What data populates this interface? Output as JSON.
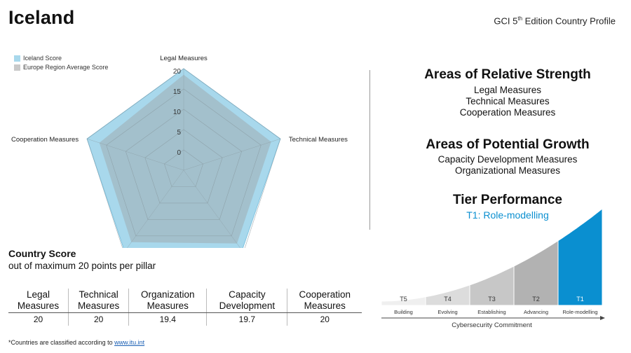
{
  "country": "Iceland",
  "edition": {
    "prefix": "GCI 5",
    "sup": "th",
    "suffix": " Edition Country Profile"
  },
  "colors": {
    "iceland": "#a8d8ec",
    "iceland_stroke": "#7fc3e0",
    "europe": "#9fadb2",
    "grid": "#8a9ba2",
    "tier_active": "#0a8fd0"
  },
  "chart_data": {
    "type": "radar",
    "categories": [
      "Legal Measures",
      "Technical Measures",
      "Organizational Measures",
      "Capacity Development Measures",
      "Cooperation Measures"
    ],
    "series": [
      {
        "name": "Iceland Score",
        "values": [
          20,
          20,
          19.4,
          19.7,
          20
        ]
      },
      {
        "name": "Europe Region Average Score",
        "values": [
          18.5,
          17.6,
          17.3,
          16.9,
          16.8
        ]
      }
    ],
    "ticks": [
      0,
      5,
      10,
      15,
      20
    ],
    "ylim": [
      -5,
      20
    ],
    "legend_position": "top-left"
  },
  "strength": {
    "title": "Areas of Relative Strength",
    "items": [
      "Legal Measures",
      "Technical Measures",
      "Cooperation Measures"
    ]
  },
  "growth": {
    "title": "Areas of Potential Growth",
    "items": [
      "Capacity Development Measures",
      "Organizational Measures"
    ]
  },
  "tier": {
    "title": "Tier Performance",
    "subtitle": "T1: Role-modelling",
    "levels": [
      {
        "code": "T5",
        "name": "Building"
      },
      {
        "code": "T4",
        "name": "Evolving"
      },
      {
        "code": "T3",
        "name": "Establishing"
      },
      {
        "code": "T2",
        "name": "Advancing"
      },
      {
        "code": "T1",
        "name": "Role-modelling"
      }
    ],
    "active_index": 4,
    "axis_label": "Cybersecurity Commitment"
  },
  "country_score": {
    "title": "Country Score",
    "subtitle": "out of maximum 20 points per pillar",
    "headers": [
      [
        "Legal",
        "Measures"
      ],
      [
        "Technical",
        "Measures"
      ],
      [
        "Organization",
        "Measures"
      ],
      [
        "Capacity",
        "Development"
      ],
      [
        "Cooperation",
        "Measures"
      ]
    ],
    "values": [
      "20",
      "20",
      "19.4",
      "19.7",
      "20"
    ]
  },
  "footnote": {
    "text": "*Countries are classified according to ",
    "link": "www.itu.int"
  }
}
